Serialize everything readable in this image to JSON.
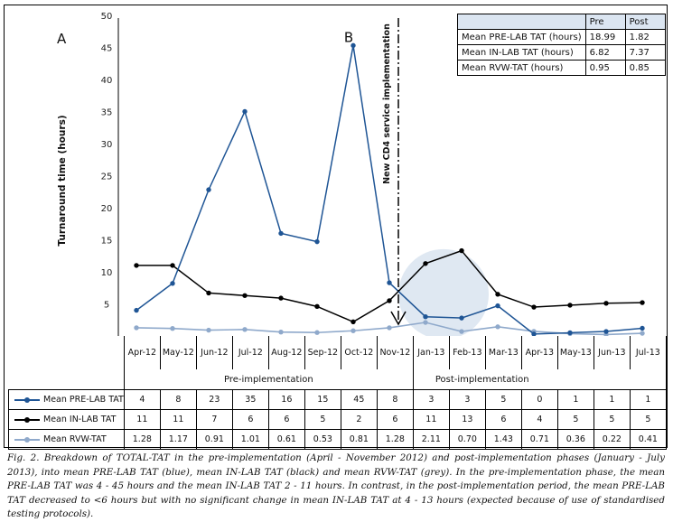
{
  "figure": {
    "panel_label_a": "A",
    "panel_label_b": "B",
    "caption": "Fig. 2. Breakdown of TOTAL-TAT in the pre-implementation (April - November 2012) and post-implementation phases (January - July 2013), into mean PRE-LAB TAT (blue), mean IN-LAB TAT (black) and mean RVW-TAT (grey). In the pre-implementation phase, the mean PRE-LAB TAT was 4 - 45 hours and the mean IN-LAB TAT 2 - 11 hours. In contrast, in the post-implementation period, the mean PRE-LAB TAT decreased to <6 hours but with no significant change in mean IN-LAB TAT at 4 - 13 hours (expected because of use of standardised testing protocols)."
  },
  "summary_table": {
    "headers": [
      "",
      "Pre",
      "Post"
    ],
    "rows": [
      {
        "label": "Mean PRE-LAB TAT (hours)",
        "pre": "18.99",
        "post": "1.82"
      },
      {
        "label": "Mean IN-LAB TAT (hours)",
        "pre": "6.82",
        "post": "7.37"
      },
      {
        "label": "Mean RVW-TAT (hours)",
        "pre": "0.95",
        "post": "0.85"
      }
    ]
  },
  "data_table": {
    "phases": {
      "pre": "Pre-implementation",
      "post": "Post-implementation"
    },
    "zero_tick": "-",
    "rows": [
      {
        "label": "Mean PRE-LAB TAT",
        "values": [
          "4",
          "8",
          "23",
          "35",
          "16",
          "15",
          "45",
          "8",
          "3",
          "3",
          "5",
          "0",
          "1",
          "1",
          "1"
        ]
      },
      {
        "label": "Mean IN-LAB TAT",
        "values": [
          "11",
          "11",
          "7",
          "6",
          "6",
          "5",
          "2",
          "6",
          "11",
          "13",
          "6",
          "4",
          "5",
          "5",
          "5"
        ]
      },
      {
        "label": "Mean RVW-TAT",
        "values": [
          "1.28",
          "1.17",
          "0.91",
          "1.01",
          "0.61",
          "0.53",
          "0.81",
          "1.28",
          "2.11",
          "0.70",
          "1.43",
          "0.71",
          "0.36",
          "0.22",
          "0.41"
        ]
      }
    ]
  },
  "chart_data": {
    "type": "line",
    "title": "",
    "xlabel": "",
    "ylabel": "Turnaround time (hours)",
    "ylim": [
      0,
      50
    ],
    "yticks": [
      5,
      10,
      15,
      20,
      25,
      30,
      35,
      40,
      45,
      50
    ],
    "ytick_zero_label": "-",
    "grid": false,
    "categories": [
      "Apr-12",
      "May-12",
      "Jun-12",
      "Jul-12",
      "Aug-12",
      "Sep-12",
      "Oct-12",
      "Nov-12",
      "Jan-13",
      "Feb-13",
      "Mar-13",
      "Apr-13",
      "May-13",
      "Jun-13",
      "Jul-13"
    ],
    "series": [
      {
        "name": "Mean PRE-LAB TAT",
        "color": "#1f5595",
        "values": [
          4,
          8,
          23,
          35,
          16,
          15,
          45,
          8,
          3,
          3,
          5,
          0,
          1,
          1,
          1
        ],
        "plotted_values": [
          4,
          8.2,
          22.8,
          35,
          16,
          14.7,
          45.3,
          8.3,
          3,
          2.8,
          4.7,
          0.3,
          0.5,
          0.7,
          1.2
        ]
      },
      {
        "name": "Mean IN-LAB TAT",
        "color": "#000000",
        "values": [
          11,
          11,
          7,
          6,
          6,
          5,
          2,
          6,
          11,
          13,
          6,
          4,
          5,
          5,
          5
        ],
        "plotted_values": [
          11,
          11,
          6.7,
          6.3,
          5.9,
          4.6,
          2.2,
          5.5,
          11.3,
          13.3,
          6.5,
          4.5,
          4.8,
          5.1,
          5.2
        ]
      },
      {
        "name": "Mean RVW-TAT",
        "color": "#8fa9cb",
        "values": [
          1.28,
          1.17,
          0.91,
          1.01,
          0.61,
          0.53,
          0.81,
          1.28,
          2.11,
          0.7,
          1.43,
          0.71,
          0.36,
          0.22,
          0.41
        ]
      }
    ],
    "annotations": [
      {
        "type": "vertical-dashdot-line",
        "between": [
          "Nov-12",
          "Jan-13"
        ],
        "label": "New CD4 service implementation",
        "arrow": "down"
      },
      {
        "type": "text",
        "label": "A",
        "position": "top-left"
      },
      {
        "type": "text",
        "label": "B",
        "at_category": "Oct-12",
        "at_series": "Mean PRE-LAB TAT"
      },
      {
        "type": "highlight-circle",
        "center_categories": [
          "Jan-13",
          "Feb-13"
        ],
        "color": "#dbe5f1"
      }
    ],
    "legend": "in-table-left"
  }
}
